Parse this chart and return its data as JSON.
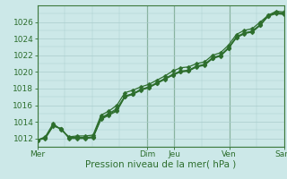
{
  "xlabel": "Pression niveau de la mer( hPa )",
  "bg_color": "#cce8e8",
  "grid_color": "#aacccc",
  "line_color": "#2d6e2d",
  "text_color": "#2d6e2d",
  "tick_color": "#2d6e2d",
  "ylim": [
    1011.0,
    1028.0
  ],
  "yticks": [
    1012,
    1014,
    1016,
    1018,
    1020,
    1022,
    1024,
    1026
  ],
  "day_hours": [
    0,
    96,
    120,
    168,
    216
  ],
  "day_labels": [
    "Mer",
    "Dim",
    "Jeu",
    "Ven",
    "Sam"
  ],
  "total_hours": 216,
  "series": [
    [
      1011.8,
      1012.2,
      1013.8,
      1013.0,
      1012.2,
      1012.3,
      1012.3,
      1012.4,
      1014.8,
      1015.3,
      1016.0,
      1017.5,
      1017.8,
      1018.2,
      1018.5,
      1019.0,
      1019.5,
      1020.1,
      1020.5,
      1020.6,
      1021.0,
      1021.2,
      1022.0,
      1022.3,
      1023.2,
      1024.5,
      1025.0,
      1025.2,
      1026.0,
      1026.8,
      1027.3,
      1027.2
    ],
    [
      1011.8,
      1012.0,
      1013.5,
      1013.2,
      1012.0,
      1012.0,
      1012.0,
      1012.1,
      1014.3,
      1014.8,
      1015.3,
      1017.0,
      1017.3,
      1017.8,
      1018.1,
      1018.6,
      1019.1,
      1019.6,
      1020.0,
      1020.1,
      1020.6,
      1020.8,
      1021.6,
      1021.9,
      1022.8,
      1024.1,
      1024.6,
      1024.8,
      1025.6,
      1026.7,
      1027.0,
      1026.9
    ],
    [
      1011.8,
      1012.1,
      1013.6,
      1013.1,
      1012.1,
      1012.15,
      1012.1,
      1012.2,
      1014.5,
      1015.0,
      1015.6,
      1017.1,
      1017.4,
      1017.9,
      1018.2,
      1018.7,
      1019.2,
      1019.7,
      1020.1,
      1020.2,
      1020.7,
      1020.9,
      1021.7,
      1022.0,
      1022.9,
      1024.2,
      1024.7,
      1024.9,
      1025.7,
      1026.85,
      1027.15,
      1027.05
    ],
    [
      1011.8,
      1012.05,
      1013.55,
      1013.15,
      1012.05,
      1012.1,
      1012.05,
      1012.15,
      1014.4,
      1014.9,
      1015.45,
      1017.05,
      1017.35,
      1017.85,
      1018.15,
      1018.65,
      1019.15,
      1019.65,
      1020.05,
      1020.15,
      1020.65,
      1020.85,
      1021.65,
      1021.95,
      1022.85,
      1024.15,
      1024.65,
      1024.85,
      1025.65,
      1026.75,
      1027.1,
      1026.95
    ]
  ],
  "n_points": 32,
  "marker_size": 2.5,
  "linewidth": 0.9,
  "xlabel_fontsize": 7.5,
  "tick_fontsize": 6.5,
  "vline_color": "#3d7a3d",
  "vline_lw": 0.8
}
